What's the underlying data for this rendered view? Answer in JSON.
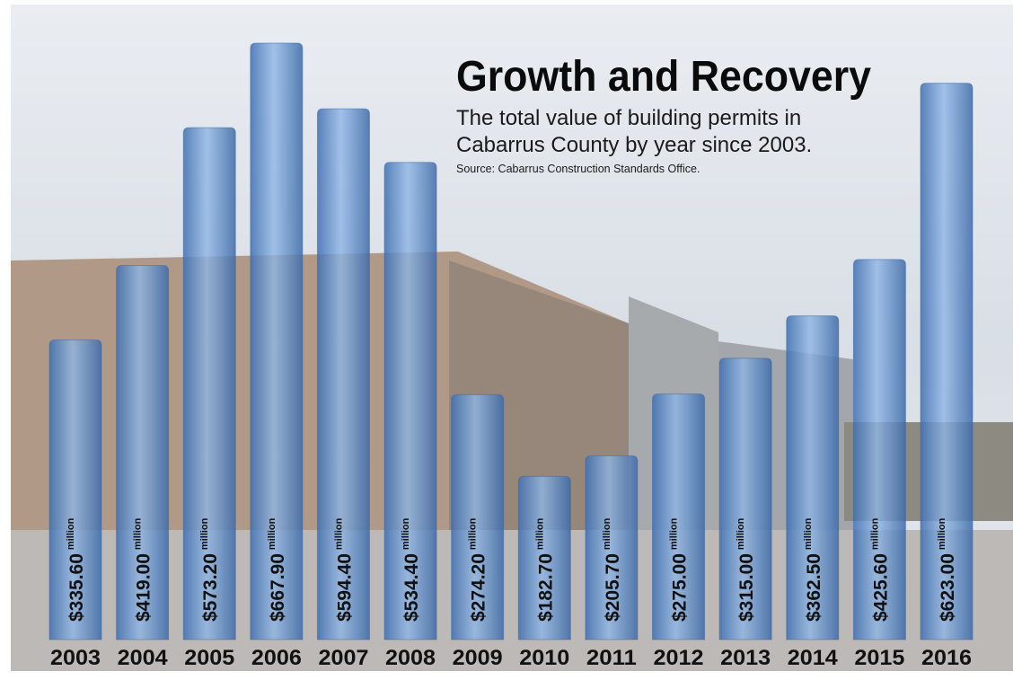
{
  "chart_data": {
    "type": "bar",
    "title": "Growth and Recovery",
    "subtitle": [
      "The total value of building permits in",
      "Cabarrus County by year since 2003."
    ],
    "source": "Source: Cabarrus Construction Standards Office.",
    "categories": [
      "2003",
      "2004",
      "2005",
      "2006",
      "2007",
      "2008",
      "2009",
      "2010",
      "2011",
      "2012",
      "2013",
      "2014",
      "2015",
      "2016"
    ],
    "values": [
      335.6,
      419,
      573.2,
      667.9,
      594.4,
      534.4,
      274.2,
      182.7,
      205.7,
      275,
      315,
      362.5,
      425.6,
      623
    ],
    "value_labels": [
      "$335.60",
      "$419.00",
      "$573.20",
      "$667.90",
      "$594.40",
      "$534.40",
      "$274.20",
      "$182.70",
      "$205.70",
      "$275.00",
      "$315.00",
      "$362.50",
      "$425.60",
      "$623.00"
    ],
    "value_unit": "million",
    "color": "#5b8fd0"
  }
}
